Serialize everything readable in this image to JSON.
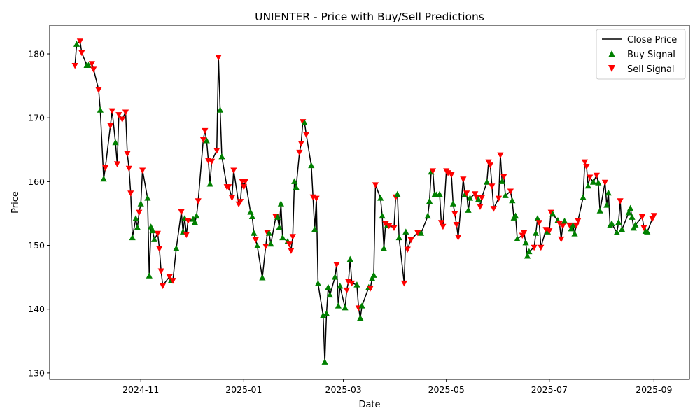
{
  "chart_data": {
    "type": "line",
    "title": "UNIENTER - Price with Buy/Sell Predictions",
    "xlabel": "Date",
    "ylabel": "Price",
    "xlim": [
      "2024-09-08",
      "2025-09-22"
    ],
    "ylim": [
      129,
      184.5
    ],
    "x_ticks": [
      "2024-11-01",
      "2025-01-01",
      "2025-03-01",
      "2025-05-01",
      "2025-07-01",
      "2025-09-01"
    ],
    "x_tick_labels": [
      "2024-11",
      "2025-01",
      "2025-03",
      "2025-05",
      "2025-07",
      "2025-09"
    ],
    "y_ticks": [
      130,
      140,
      150,
      160,
      170,
      180
    ],
    "grid": false,
    "legend_position": "top-right",
    "series": [
      {
        "name": "Close Price",
        "kind": "line",
        "color": "#000000"
      },
      {
        "name": "Buy Signal",
        "kind": "scatter",
        "marker": "triangle-up",
        "color": "#008000"
      },
      {
        "name": "Sell Signal",
        "kind": "scatter",
        "marker": "triangle-down",
        "color": "#ff0000"
      }
    ],
    "points": [
      [
        "2024-09-23",
        178.2,
        "sell"
      ],
      [
        "2024-09-24",
        181.5,
        "buy"
      ],
      [
        "2024-09-26",
        182.0,
        "sell"
      ],
      [
        "2024-09-27",
        180.2,
        "sell"
      ],
      [
        "2024-09-30",
        178.2,
        "buy"
      ],
      [
        "2024-10-01",
        178.2,
        "buy"
      ],
      [
        "2024-10-03",
        178.5,
        "sell"
      ],
      [
        "2024-10-04",
        177.6,
        "sell"
      ],
      [
        "2024-10-07",
        174.4,
        "sell"
      ],
      [
        "2024-10-08",
        171.2,
        "buy"
      ],
      [
        "2024-10-10",
        160.4,
        "buy"
      ],
      [
        "2024-10-11",
        162.2,
        "sell"
      ],
      [
        "2024-10-14",
        168.8,
        "sell"
      ],
      [
        "2024-10-15",
        171.1,
        "sell"
      ],
      [
        "2024-10-17",
        166.1,
        "buy"
      ],
      [
        "2024-10-18",
        162.8,
        "sell"
      ],
      [
        "2024-10-19",
        170.5,
        "sell"
      ],
      [
        "2024-10-21",
        169.8,
        "sell"
      ],
      [
        "2024-10-23",
        170.9,
        "sell"
      ],
      [
        "2024-10-24",
        164.4,
        "sell"
      ],
      [
        "2024-10-25",
        162.1,
        "sell"
      ],
      [
        "2024-10-26",
        158.2,
        "sell"
      ],
      [
        "2024-10-27",
        151.2,
        "buy"
      ],
      [
        "2024-10-29",
        154.2,
        "buy"
      ],
      [
        "2024-10-30",
        152.8,
        "buy"
      ],
      [
        "2024-10-31",
        155.2,
        "sell"
      ],
      [
        "2024-11-01",
        156.5,
        "buy"
      ],
      [
        "2024-11-02",
        161.8,
        "sell"
      ],
      [
        "2024-11-05",
        157.4,
        "buy"
      ],
      [
        "2024-11-06",
        145.2,
        "buy"
      ],
      [
        "2024-11-07",
        152.9,
        "buy"
      ],
      [
        "2024-11-08",
        152.3,
        "buy"
      ],
      [
        "2024-11-09",
        150.9,
        "buy"
      ],
      [
        "2024-11-11",
        151.9,
        "sell"
      ],
      [
        "2024-11-12",
        149.5,
        "sell"
      ],
      [
        "2024-11-13",
        146.0,
        "sell"
      ],
      [
        "2024-11-14",
        143.7,
        "sell"
      ],
      [
        "2024-11-18",
        145.1,
        "sell"
      ],
      [
        "2024-11-19",
        144.5,
        "buy"
      ],
      [
        "2024-11-20",
        144.5,
        "sell"
      ],
      [
        "2024-11-22",
        149.5,
        "buy"
      ],
      [
        "2024-11-25",
        155.3,
        "sell"
      ],
      [
        "2024-11-26",
        152.1,
        "buy"
      ],
      [
        "2024-11-27",
        154.2,
        "buy"
      ],
      [
        "2024-11-28",
        151.7,
        "sell"
      ],
      [
        "2024-11-29",
        153.9,
        "sell"
      ],
      [
        "2024-12-02",
        154.1,
        "buy"
      ],
      [
        "2024-12-03",
        153.6,
        "buy"
      ],
      [
        "2024-12-04",
        154.6,
        "buy"
      ],
      [
        "2024-12-05",
        157.0,
        "sell"
      ],
      [
        "2024-12-08",
        166.6,
        "sell"
      ],
      [
        "2024-12-09",
        168.0,
        "sell"
      ],
      [
        "2024-12-10",
        166.4,
        "buy"
      ],
      [
        "2024-12-11",
        163.3,
        "sell"
      ],
      [
        "2024-12-12",
        159.6,
        "buy"
      ],
      [
        "2024-12-13",
        163.2,
        "sell"
      ],
      [
        "2024-12-16",
        164.9,
        "sell"
      ],
      [
        "2024-12-17",
        179.5,
        "sell"
      ],
      [
        "2024-12-18",
        171.2,
        "buy"
      ],
      [
        "2024-12-19",
        163.9,
        "buy"
      ],
      [
        "2024-12-22",
        159.2,
        "sell"
      ],
      [
        "2024-12-23",
        159.2,
        "sell"
      ],
      [
        "2024-12-25",
        157.5,
        "sell"
      ],
      [
        "2024-12-26",
        161.8,
        "sell"
      ],
      [
        "2024-12-29",
        156.5,
        "sell"
      ],
      [
        "2024-12-30",
        156.9,
        "sell"
      ],
      [
        "2024-12-31",
        160.1,
        "sell"
      ],
      [
        "2025-01-01",
        159.2,
        "sell"
      ],
      [
        "2025-01-02",
        160.1,
        "sell"
      ],
      [
        "2025-01-05",
        155.2,
        "buy"
      ],
      [
        "2025-01-06",
        154.5,
        "buy"
      ],
      [
        "2025-01-07",
        151.9,
        "buy"
      ],
      [
        "2025-01-08",
        150.9,
        "sell"
      ],
      [
        "2025-01-09",
        149.9,
        "buy"
      ],
      [
        "2025-01-12",
        144.9,
        "buy"
      ],
      [
        "2025-01-14",
        149.9,
        "sell"
      ],
      [
        "2025-01-15",
        152.0,
        "sell"
      ],
      [
        "2025-01-16",
        151.9,
        "buy"
      ],
      [
        "2025-01-17",
        150.2,
        "buy"
      ],
      [
        "2025-01-20",
        154.5,
        "sell"
      ],
      [
        "2025-01-21",
        154.4,
        "buy"
      ],
      [
        "2025-01-22",
        152.8,
        "buy"
      ],
      [
        "2025-01-23",
        156.5,
        "buy"
      ],
      [
        "2025-01-24",
        151.2,
        "buy"
      ],
      [
        "2025-01-27",
        150.6,
        "buy"
      ],
      [
        "2025-01-28",
        150.2,
        "sell"
      ],
      [
        "2025-01-29",
        149.2,
        "sell"
      ],
      [
        "2025-01-30",
        151.4,
        "sell"
      ],
      [
        "2025-01-31",
        160.0,
        "buy"
      ],
      [
        "2025-02-01",
        159.1,
        "buy"
      ],
      [
        "2025-02-03",
        164.6,
        "sell"
      ],
      [
        "2025-02-04",
        166.0,
        "sell"
      ],
      [
        "2025-02-05",
        169.4,
        "sell"
      ],
      [
        "2025-02-06",
        169.2,
        "buy"
      ],
      [
        "2025-02-07",
        167.4,
        "sell"
      ],
      [
        "2025-02-10",
        162.5,
        "buy"
      ],
      [
        "2025-02-11",
        157.6,
        "sell"
      ],
      [
        "2025-02-12",
        152.5,
        "buy"
      ],
      [
        "2025-02-13",
        157.4,
        "sell"
      ],
      [
        "2025-02-14",
        144.0,
        "buy"
      ],
      [
        "2025-02-17",
        139.0,
        "buy"
      ],
      [
        "2025-02-18",
        131.7,
        "buy"
      ],
      [
        "2025-02-19",
        139.3,
        "buy"
      ],
      [
        "2025-02-20",
        143.4,
        "buy"
      ],
      [
        "2025-02-21",
        142.2,
        "buy"
      ],
      [
        "2025-02-24",
        145.0,
        "buy"
      ],
      [
        "2025-02-25",
        147.0,
        "sell"
      ],
      [
        "2025-02-26",
        140.5,
        "buy"
      ],
      [
        "2025-02-27",
        143.6,
        "buy"
      ],
      [
        "2025-03-02",
        140.2,
        "buy"
      ],
      [
        "2025-03-03",
        143.0,
        "sell"
      ],
      [
        "2025-03-04",
        144.3,
        "sell"
      ],
      [
        "2025-03-05",
        147.8,
        "buy"
      ],
      [
        "2025-03-06",
        144.1,
        "sell"
      ],
      [
        "2025-03-09",
        143.8,
        "buy"
      ],
      [
        "2025-03-10",
        140.2,
        "sell"
      ],
      [
        "2025-03-11",
        138.6,
        "buy"
      ],
      [
        "2025-03-12",
        140.5,
        "buy"
      ],
      [
        "2025-03-16",
        143.4,
        "buy"
      ],
      [
        "2025-03-17",
        143.3,
        "sell"
      ],
      [
        "2025-03-18",
        144.8,
        "buy"
      ],
      [
        "2025-03-19",
        145.3,
        "buy"
      ],
      [
        "2025-03-20",
        159.5,
        "sell"
      ],
      [
        "2025-03-23",
        157.4,
        "buy"
      ],
      [
        "2025-03-24",
        154.6,
        "buy"
      ],
      [
        "2025-03-25",
        149.5,
        "buy"
      ],
      [
        "2025-03-26",
        153.4,
        "sell"
      ],
      [
        "2025-03-27",
        153.1,
        "buy"
      ],
      [
        "2025-03-28",
        153.1,
        "sell"
      ],
      [
        "2025-03-31",
        152.8,
        "sell"
      ],
      [
        "2025-04-01",
        157.6,
        "sell"
      ],
      [
        "2025-04-02",
        158.0,
        "buy"
      ],
      [
        "2025-04-03",
        151.2,
        "buy"
      ],
      [
        "2025-04-06",
        144.1,
        "sell"
      ],
      [
        "2025-04-07",
        152.1,
        "buy"
      ],
      [
        "2025-04-08",
        149.4,
        "sell"
      ],
      [
        "2025-04-10",
        150.9,
        "sell"
      ],
      [
        "2025-04-14",
        152.0,
        "sell"
      ],
      [
        "2025-04-16",
        151.9,
        "buy"
      ],
      [
        "2025-04-20",
        154.6,
        "buy"
      ],
      [
        "2025-04-21",
        156.9,
        "buy"
      ],
      [
        "2025-04-22",
        161.5,
        "buy"
      ],
      [
        "2025-04-23",
        161.7,
        "sell"
      ],
      [
        "2025-04-24",
        157.9,
        "buy"
      ],
      [
        "2025-04-25",
        157.9,
        "buy"
      ],
      [
        "2025-04-27",
        158.0,
        "buy"
      ],
      [
        "2025-04-28",
        153.6,
        "sell"
      ],
      [
        "2025-04-29",
        153.0,
        "sell"
      ],
      [
        "2025-05-01",
        161.7,
        "sell"
      ],
      [
        "2025-05-02",
        161.4,
        "sell"
      ],
      [
        "2025-05-04",
        161.1,
        "sell"
      ],
      [
        "2025-05-05",
        156.5,
        "buy"
      ],
      [
        "2025-05-06",
        155.0,
        "sell"
      ],
      [
        "2025-05-07",
        153.3,
        "sell"
      ],
      [
        "2025-05-08",
        151.3,
        "sell"
      ],
      [
        "2025-05-11",
        160.4,
        "sell"
      ],
      [
        "2025-05-12",
        157.9,
        "buy"
      ],
      [
        "2025-05-13",
        158.2,
        "sell"
      ],
      [
        "2025-05-14",
        155.5,
        "buy"
      ],
      [
        "2025-05-15",
        157.4,
        "buy"
      ],
      [
        "2025-05-18",
        158.1,
        "sell"
      ],
      [
        "2025-05-19",
        157.5,
        "sell"
      ],
      [
        "2025-05-20",
        157.2,
        "buy"
      ],
      [
        "2025-05-21",
        156.1,
        "sell"
      ],
      [
        "2025-05-22",
        157.5,
        "sell"
      ],
      [
        "2025-05-25",
        159.9,
        "buy"
      ],
      [
        "2025-05-26",
        163.1,
        "sell"
      ],
      [
        "2025-05-27",
        162.6,
        "sell"
      ],
      [
        "2025-05-28",
        159.3,
        "sell"
      ],
      [
        "2025-05-29",
        155.8,
        "sell"
      ],
      [
        "2025-06-01",
        157.4,
        "sell"
      ],
      [
        "2025-06-02",
        164.2,
        "sell"
      ],
      [
        "2025-06-03",
        160.0,
        "buy"
      ],
      [
        "2025-06-04",
        160.8,
        "sell"
      ],
      [
        "2025-06-05",
        157.8,
        "buy"
      ],
      [
        "2025-06-08",
        158.5,
        "sell"
      ],
      [
        "2025-06-09",
        157.0,
        "buy"
      ],
      [
        "2025-06-10",
        154.3,
        "buy"
      ],
      [
        "2025-06-11",
        154.6,
        "buy"
      ],
      [
        "2025-06-12",
        151.0,
        "buy"
      ],
      [
        "2025-06-15",
        151.6,
        "sell"
      ],
      [
        "2025-06-16",
        152.0,
        "sell"
      ],
      [
        "2025-06-17",
        150.4,
        "buy"
      ],
      [
        "2025-06-18",
        148.3,
        "buy"
      ],
      [
        "2025-06-19",
        149.0,
        "buy"
      ],
      [
        "2025-06-22",
        149.7,
        "sell"
      ],
      [
        "2025-06-23",
        151.9,
        "buy"
      ],
      [
        "2025-06-24",
        154.2,
        "buy"
      ],
      [
        "2025-06-25",
        153.6,
        "sell"
      ],
      [
        "2025-06-26",
        149.7,
        "sell"
      ],
      [
        "2025-06-29",
        152.5,
        "sell"
      ],
      [
        "2025-06-30",
        152.1,
        "buy"
      ],
      [
        "2025-07-01",
        152.3,
        "sell"
      ],
      [
        "2025-07-02",
        155.2,
        "sell"
      ],
      [
        "2025-07-03",
        154.9,
        "buy"
      ],
      [
        "2025-07-06",
        153.9,
        "buy"
      ],
      [
        "2025-07-07",
        153.5,
        "sell"
      ],
      [
        "2025-07-08",
        151.0,
        "sell"
      ],
      [
        "2025-07-09",
        153.1,
        "sell"
      ],
      [
        "2025-07-10",
        153.8,
        "buy"
      ],
      [
        "2025-07-13",
        153.2,
        "sell"
      ],
      [
        "2025-07-14",
        152.6,
        "buy"
      ],
      [
        "2025-07-15",
        153.1,
        "buy"
      ],
      [
        "2025-07-16",
        151.8,
        "buy"
      ],
      [
        "2025-07-17",
        153.2,
        "sell"
      ],
      [
        "2025-07-18",
        153.9,
        "sell"
      ],
      [
        "2025-07-21",
        157.5,
        "buy"
      ],
      [
        "2025-07-22",
        163.1,
        "sell"
      ],
      [
        "2025-07-23",
        162.4,
        "sell"
      ],
      [
        "2025-07-24",
        159.3,
        "buy"
      ],
      [
        "2025-07-25",
        160.7,
        "sell"
      ],
      [
        "2025-07-27",
        159.9,
        "buy"
      ],
      [
        "2025-07-29",
        161.0,
        "sell"
      ],
      [
        "2025-07-30",
        159.8,
        "buy"
      ],
      [
        "2025-07-31",
        155.4,
        "buy"
      ],
      [
        "2025-08-03",
        159.9,
        "sell"
      ],
      [
        "2025-08-04",
        156.3,
        "buy"
      ],
      [
        "2025-08-05",
        158.2,
        "buy"
      ],
      [
        "2025-08-06",
        153.1,
        "buy"
      ],
      [
        "2025-08-07",
        153.4,
        "buy"
      ],
      [
        "2025-08-10",
        152.0,
        "buy"
      ],
      [
        "2025-08-11",
        153.6,
        "buy"
      ],
      [
        "2025-08-12",
        157.0,
        "sell"
      ],
      [
        "2025-08-13",
        152.5,
        "buy"
      ],
      [
        "2025-08-17",
        155.1,
        "buy"
      ],
      [
        "2025-08-18",
        155.8,
        "buy"
      ],
      [
        "2025-08-19",
        154.4,
        "buy"
      ],
      [
        "2025-08-20",
        152.7,
        "buy"
      ],
      [
        "2025-08-21",
        153.2,
        "buy"
      ],
      [
        "2025-08-25",
        154.5,
        "sell"
      ],
      [
        "2025-08-26",
        152.8,
        "sell"
      ],
      [
        "2025-08-27",
        152.2,
        "buy"
      ],
      [
        "2025-08-28",
        152.1,
        "buy"
      ],
      [
        "2025-08-31",
        154.2,
        "sell"
      ],
      [
        "2025-09-01",
        154.7,
        "sell"
      ]
    ]
  }
}
